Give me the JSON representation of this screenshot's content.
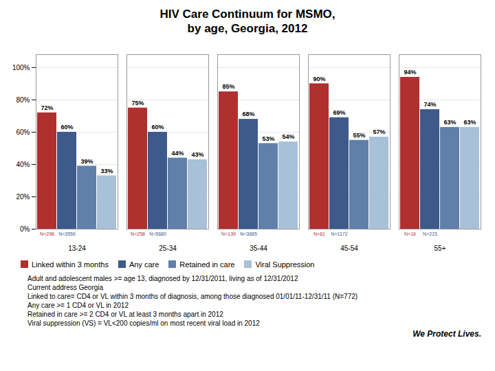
{
  "chart_data": {
    "type": "bar",
    "title": "HIV Care Continuum for MSMO,\nby age, Georgia, 2012",
    "categories": [
      "13-24",
      "25-34",
      "35-44",
      "45-54",
      "55+"
    ],
    "series": [
      {
        "name": "Linked within 3 months",
        "color": "#B03030",
        "values": [
          72,
          75,
          85,
          90,
          94
        ],
        "value_labels": [
          "72%",
          "75%",
          "85%",
          "90%",
          "94%"
        ]
      },
      {
        "name": "Any care",
        "color": "#3D5A8A",
        "values": [
          60,
          60,
          68,
          69,
          74
        ],
        "value_labels": [
          "60%",
          "60%",
          "68%",
          "69%",
          "74%"
        ]
      },
      {
        "name": "Retained in care",
        "color": "#6080AA",
        "values": [
          39,
          44,
          53,
          55,
          63
        ],
        "value_labels": [
          "39%",
          "44%",
          "53%",
          "55%",
          "63%"
        ]
      },
      {
        "name": "Viral Suppression",
        "color": "#A8C0D8",
        "values": [
          33,
          43,
          54,
          57,
          63
        ],
        "value_labels": [
          "33%",
          "43%",
          "54%",
          "57%",
          "63%"
        ]
      }
    ],
    "ylim": [
      0,
      108
    ],
    "yticks": [
      {
        "value": 0,
        "label": "0%"
      },
      {
        "value": 20,
        "label": "20%"
      },
      {
        "value": 40,
        "label": "40%"
      },
      {
        "value": 60,
        "label": "60%"
      },
      {
        "value": 80,
        "label": "80%"
      },
      {
        "value": 100,
        "label": "100%"
      }
    ],
    "grid": true,
    "data_labels": true,
    "legend": "lower left",
    "annotations": [
      {
        "text": "N=298",
        "category": "13-24",
        "color": "#B03030"
      },
      {
        "text": "N=3556",
        "category": "13-24",
        "color": "#3D5A8A"
      },
      {
        "text": "N=258",
        "category": "25-34",
        "color": "#B03030"
      },
      {
        "text": "N=5680",
        "category": "25-34",
        "color": "#3D5A8A"
      },
      {
        "text": "N=139",
        "category": "35-44",
        "color": "#B03030"
      },
      {
        "text": "N=3685",
        "category": "35-44",
        "color": "#3D5A8A"
      },
      {
        "text": "N=61",
        "category": "45-54",
        "color": "#B03030"
      },
      {
        "text": "N=1172",
        "category": "45-54",
        "color": "#3D5A8A"
      },
      {
        "text": "N=16",
        "category": "55+",
        "color": "#B03030"
      },
      {
        "text": "N=223",
        "category": "55+",
        "color": "#3D5A8A"
      }
    ],
    "footnotes": [
      "Adult and adolescent males >= age 13, diagnosed by 12/31/2011, living as of 12/31/2012",
      "Current address Georgia",
      "Linked to care= CD4 or VL within 3 months of diagnosis, among those diagnosed 01/01/11-12/31/11 (N=772)",
      "Any care >= 1 CD4 or VL in 2012",
      "Retained in care >= 2 CD4 or VL at least 3 months apart in 2012",
      "Viral suppression (VS) = VL<200 copies/ml on most recent viral load in 2012"
    ],
    "watermark": "We Protect Lives."
  }
}
